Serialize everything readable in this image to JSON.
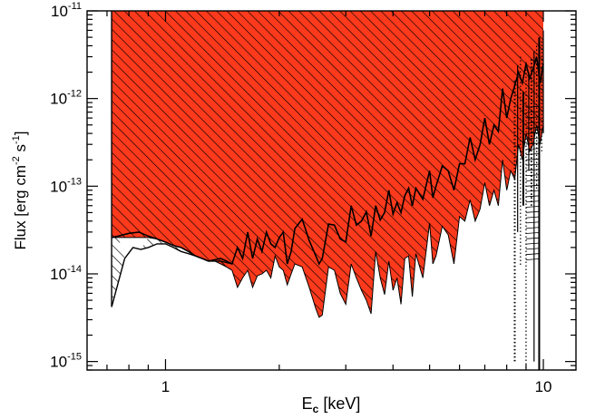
{
  "chart_data": {
    "type": "area",
    "xscale": "log",
    "yscale": "log",
    "xlim": [
      0.62,
      12.2
    ],
    "ylim": [
      8e-16,
      1e-11
    ],
    "xticks": [
      {
        "value": 1,
        "label": "1"
      },
      {
        "value": 10,
        "label": "10"
      }
    ],
    "yticks": [
      {
        "value": 1e-15,
        "base": "10",
        "exp": "-15"
      },
      {
        "value": 1e-14,
        "base": "10",
        "exp": "-14"
      },
      {
        "value": 1e-13,
        "base": "10",
        "exp": "-13"
      },
      {
        "value": 1e-12,
        "base": "10",
        "exp": "-12"
      },
      {
        "value": 1e-11,
        "base": "10",
        "exp": "-11"
      }
    ],
    "xlabel": {
      "main": "E",
      "sub": "c",
      "rest": " [keV]"
    },
    "ylabel": {
      "p1": "Flux [erg cm",
      "e1": "-2",
      "p2": " s",
      "e2": "-1",
      "p3": "]"
    },
    "grid": false,
    "colors": {
      "red_region": "#ff3a1c",
      "hatch": "#000000",
      "background": "#ffffff"
    },
    "series": [
      {
        "style": "red-filled-hatched",
        "x": [
          0.72,
          0.75,
          0.8,
          0.85,
          0.9,
          0.95,
          1.0,
          1.05,
          1.1,
          1.15,
          1.2,
          1.25,
          1.3,
          1.35,
          1.4,
          1.45,
          1.5,
          1.55,
          1.6,
          1.65,
          1.7,
          1.75,
          1.8,
          1.85,
          1.9,
          1.95,
          2.0,
          2.05,
          2.1,
          2.15,
          2.2,
          2.3,
          2.4,
          2.5,
          2.55,
          2.6,
          2.7,
          2.8,
          2.9,
          3.0,
          3.1,
          3.2,
          3.3,
          3.4,
          3.5,
          3.6,
          3.7,
          3.8,
          3.9,
          4.0,
          4.1,
          4.2,
          4.3,
          4.4,
          4.5,
          4.6,
          4.8,
          5.0,
          5.1,
          5.2,
          5.4,
          5.6,
          5.8,
          6.0,
          6.2,
          6.4,
          6.6,
          6.8,
          7.0,
          7.2,
          7.4,
          7.6,
          7.8,
          8.0,
          8.2,
          8.4,
          8.6,
          8.8,
          9.0,
          9.2,
          9.4,
          9.6,
          9.8,
          10.0
        ],
        "upper": [
          2.6e-14,
          2.7e-14,
          2.9e-14,
          3e-14,
          2.7e-14,
          2.5e-14,
          2.3e-14,
          2.1e-14,
          2e-14,
          1.8e-14,
          1.6e-14,
          1.5e-14,
          1.4e-14,
          1.45e-14,
          1.5e-14,
          1.4e-14,
          1.3e-14,
          2e-14,
          1.5e-14,
          3e-14,
          1.5e-14,
          2.5e-14,
          1.8e-14,
          3e-14,
          2.2e-14,
          2e-14,
          2.6e-14,
          3e-14,
          1.3e-14,
          1.8e-14,
          3.3e-14,
          4.2e-14,
          2.4e-14,
          1.6e-14,
          1.3e-14,
          1.5e-14,
          3.7e-14,
          3.6e-14,
          2.5e-14,
          2.3e-14,
          6e-14,
          3.6e-14,
          4e-14,
          5.1e-14,
          2.7e-14,
          6e-14,
          4.1e-14,
          5e-14,
          9e-14,
          4.8e-14,
          6.5e-14,
          5e-14,
          7.8e-14,
          9.5e-14,
          6e-14,
          9.5e-14,
          7.1e-14,
          1.5e-13,
          7.4e-14,
          1e-13,
          1.7e-13,
          1.5e-13,
          9e-14,
          1.8e-13,
          1.8e-13,
          3.6e-13,
          2e-13,
          3e-13,
          6e-13,
          3e-13,
          5e-13,
          4.2e-13,
          1.3e-12,
          6e-13,
          1e-12,
          1.4e-12,
          2e-12,
          1.5e-12,
          2.5e-12,
          1.7e-12,
          2.2e-12,
          3e-12,
          1.5e-12,
          2.5e-12
        ],
        "lower": [
          2.6e-14,
          2.6e-14,
          2.6e-14,
          2.6e-14,
          2.6e-14,
          2.5e-14,
          2.3e-14,
          2.1e-14,
          2e-14,
          1.8e-14,
          1.6e-14,
          1.5e-14,
          1.4e-14,
          1.4e-14,
          1.3e-14,
          1.2e-14,
          1.1e-14,
          7e-15,
          9e-15,
          1.1e-14,
          7e-15,
          9.5e-15,
          1e-14,
          1.1e-14,
          9e-15,
          1.6e-14,
          1.2e-14,
          1.1e-14,
          7.5e-15,
          1e-14,
          1.3e-14,
          1.2e-14,
          7e-15,
          4e-15,
          3.2e-15,
          3.4e-15,
          1.2e-14,
          1.1e-14,
          6e-15,
          4.5e-15,
          1.3e-14,
          9e-15,
          6.5e-15,
          5e-15,
          3.5e-15,
          1.8e-14,
          9e-15,
          5.8e-15,
          1.4e-14,
          6.5e-15,
          9e-15,
          4.5e-15,
          1.5e-14,
          1.6e-14,
          5.5e-15,
          1.7e-14,
          9e-15,
          3.8e-14,
          1.3e-14,
          1.6e-14,
          3.5e-14,
          2.8e-14,
          1.3e-14,
          4.5e-14,
          4e-14,
          7e-14,
          4e-14,
          5.5e-14,
          1.1e-13,
          6e-14,
          9e-14,
          6e-14,
          2e-13,
          9e-14,
          1.5e-13,
          1.2e-13,
          3e-13,
          2e-13,
          4e-13,
          2.5e-13,
          3e-13,
          5e-13,
          3e-13,
          5e-13
        ]
      },
      {
        "style": "black-hatched-outline",
        "x": [
          0.72,
          0.75,
          0.78,
          0.82,
          0.86,
          0.9,
          0.95,
          1.0,
          1.05,
          1.1,
          1.15,
          1.2,
          1.25,
          1.3,
          1.4,
          1.5
        ],
        "lower": [
          4.2e-15,
          8e-15,
          1.5e-14,
          2e-14,
          1.9e-14,
          2e-14,
          2.2e-14,
          2.2e-14,
          2e-14,
          1.8e-14,
          1.7e-14,
          1.6e-14,
          1.5e-14,
          1.4e-14,
          1.4e-14,
          1.3e-14
        ]
      },
      {
        "style": "high-energy-spikes",
        "x": [
          8.4,
          8.55,
          8.7,
          8.85,
          9.0,
          9.15,
          9.3,
          9.45,
          9.6,
          9.75,
          9.9,
          10.0
        ],
        "upper": [
          1.6e-12,
          2.4e-12,
          3e-12,
          1.2e-12,
          2.6e-12,
          2e-12,
          2.8e-12,
          3.5e-12,
          4e-12,
          5e-12,
          4.5e-12,
          6e-12
        ],
        "lower": [
          1e-15,
          3e-14,
          1.2e-14,
          6e-14,
          8e-16,
          1.5e-13,
          6e-14,
          1e-15,
          9e-14,
          8e-16,
          2.5e-13,
          4e-13
        ]
      }
    ]
  }
}
